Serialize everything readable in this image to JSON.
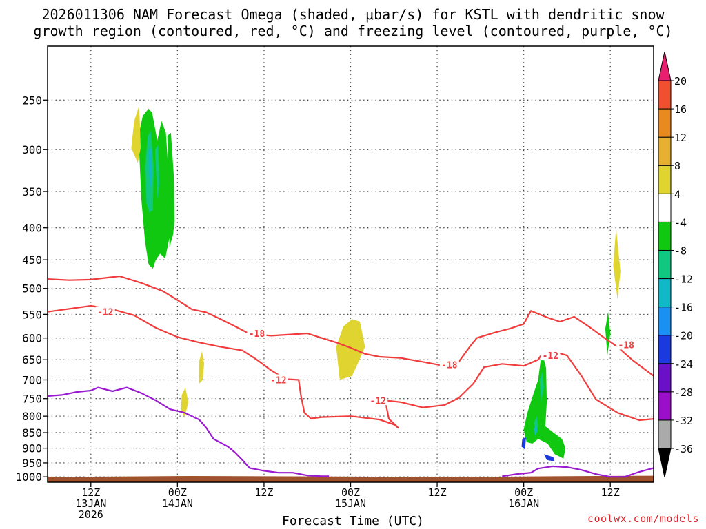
{
  "title_line1": "2026011306 NAM Forecast Omega (shaded, μbar/s) for KSTL with dendritic snow",
  "title_line2": "growth region (contoured, red, °C) and freezing level (contoured, purple, °C)",
  "credit": "coolwx.com/models",
  "chart_data": {
    "type": "heatmap",
    "xlabel": "Forecast Time (UTC)",
    "ylabel": "",
    "y_scale": "log-pressure (hPa, inverted)",
    "ylim": [
      1020,
      205
    ],
    "xlim_hours": [
      0,
      84
    ],
    "grid": true,
    "y_ticks": [
      250,
      300,
      350,
      400,
      450,
      500,
      550,
      600,
      650,
      700,
      750,
      800,
      850,
      900,
      950,
      1000
    ],
    "x_ticks": [
      {
        "hour": 6,
        "lines": [
          "12Z",
          "13JAN",
          "2026"
        ]
      },
      {
        "hour": 18,
        "lines": [
          "00Z",
          "14JAN"
        ]
      },
      {
        "hour": 30,
        "lines": [
          "12Z"
        ]
      },
      {
        "hour": 42,
        "lines": [
          "00Z",
          "15JAN"
        ]
      },
      {
        "hour": 54,
        "lines": [
          "12Z"
        ]
      },
      {
        "hour": 66,
        "lines": [
          "00Z",
          "16JAN"
        ]
      },
      {
        "hour": 78,
        "lines": [
          "12Z"
        ]
      }
    ],
    "colorbar": {
      "levels": [
        -36,
        -32,
        -28,
        -24,
        -20,
        -16,
        -12,
        -8,
        -4,
        4,
        8,
        12,
        16,
        20
      ],
      "colors": [
        "#000000",
        "#aaaaaa",
        "#9a10c8",
        "#6a10c8",
        "#1a3ae0",
        "#1a90f0",
        "#10b8c8",
        "#10c880",
        "#10c810",
        "#ffffff",
        "#e0d430",
        "#e8b030",
        "#e88a20",
        "#f05030",
        "#e81e6e"
      ]
    },
    "contours": {
      "dgz_minus12": [
        [
          0,
          545
        ],
        [
          6,
          533
        ],
        [
          9,
          540
        ],
        [
          12,
          552
        ],
        [
          15,
          578
        ],
        [
          18,
          598
        ],
        [
          21,
          610
        ],
        [
          24,
          620
        ],
        [
          27,
          628
        ],
        [
          29,
          650
        ],
        [
          31,
          676
        ],
        [
          33,
          698
        ],
        [
          34.8,
          700
        ],
        [
          35.1,
          740
        ],
        [
          35.6,
          790
        ],
        [
          36.5,
          807
        ],
        [
          38,
          803
        ],
        [
          42,
          800
        ],
        [
          46,
          810
        ],
        [
          48,
          825
        ],
        [
          48.6,
          835
        ],
        [
          47.3,
          808
        ],
        [
          46.8,
          755
        ],
        [
          49,
          760
        ],
        [
          52,
          775
        ],
        [
          55,
          768
        ],
        [
          57,
          748
        ],
        [
          59,
          710
        ],
        [
          60.5,
          668
        ],
        [
          63,
          660
        ],
        [
          66,
          665
        ],
        [
          68,
          650
        ],
        [
          68.7,
          632
        ],
        [
          70,
          630
        ],
        [
          72,
          640
        ],
        [
          74,
          690
        ],
        [
          76,
          752
        ],
        [
          79,
          790
        ],
        [
          82,
          812
        ],
        [
          84,
          808
        ]
      ],
      "dgz_minus18": [
        [
          0,
          483
        ],
        [
          3,
          485
        ],
        [
          6,
          484
        ],
        [
          10,
          478
        ],
        [
          13,
          490
        ],
        [
          16,
          505
        ],
        [
          18,
          522
        ],
        [
          20,
          540
        ],
        [
          22,
          546
        ],
        [
          24,
          560
        ],
        [
          26,
          575
        ],
        [
          28,
          591
        ],
        [
          31,
          595
        ],
        [
          34,
          592
        ],
        [
          36,
          590
        ],
        [
          38,
          600
        ],
        [
          40,
          610
        ],
        [
          42,
          622
        ],
        [
          44,
          636
        ],
        [
          46,
          643
        ],
        [
          49,
          646
        ],
        [
          52,
          655
        ],
        [
          55,
          665
        ],
        [
          57,
          655
        ],
        [
          58.5,
          620
        ],
        [
          59.5,
          600
        ],
        [
          62,
          588
        ],
        [
          64,
          580
        ],
        [
          66,
          570
        ],
        [
          67,
          543
        ],
        [
          69,
          555
        ],
        [
          71,
          565
        ],
        [
          73,
          555
        ],
        [
          75,
          575
        ],
        [
          77,
          598
        ],
        [
          79,
          620
        ],
        [
          81,
          650
        ],
        [
          84,
          690
        ]
      ],
      "freezing_level": [
        [
          0,
          743
        ],
        [
          2,
          740
        ],
        [
          4,
          732
        ],
        [
          6,
          728
        ],
        [
          7,
          720
        ],
        [
          9,
          730
        ],
        [
          11,
          720
        ],
        [
          13,
          735
        ],
        [
          15,
          755
        ],
        [
          17,
          780
        ],
        [
          19,
          790
        ],
        [
          21,
          810
        ],
        [
          22,
          835
        ],
        [
          23,
          870
        ],
        [
          25,
          895
        ],
        [
          26,
          915
        ],
        [
          27,
          940
        ],
        [
          28,
          968
        ],
        [
          30,
          978
        ],
        [
          32,
          985
        ],
        [
          34,
          985
        ],
        [
          36,
          995
        ],
        [
          38,
          998
        ],
        [
          39,
          998
        ]
      ],
      "freezing_level_2": [
        [
          63,
          998
        ],
        [
          65,
          990
        ],
        [
          67,
          985
        ],
        [
          68,
          970
        ],
        [
          70,
          962
        ],
        [
          72,
          965
        ],
        [
          74,
          975
        ],
        [
          76,
          990
        ],
        [
          78,
          1000
        ],
        [
          80,
          1000
        ],
        [
          82,
          982
        ],
        [
          84,
          968
        ]
      ]
    },
    "contour_labels": [
      {
        "text": "-12",
        "hour": 8,
        "p": 545
      },
      {
        "text": "-18",
        "hour": 29,
        "p": 590
      },
      {
        "text": "-12",
        "hour": 32,
        "p": 700
      },
      {
        "text": "-12",
        "hour": 45.8,
        "p": 755
      },
      {
        "text": "-18",
        "hour": 55.7,
        "p": 662
      },
      {
        "text": "-12",
        "hour": 69.7,
        "p": 640
      },
      {
        "text": "-18",
        "hour": 80.2,
        "p": 615
      }
    ],
    "omega_areas": [
      {
        "level": -8,
        "points": [
          [
            12.6,
            285
          ],
          [
            13.2,
            265
          ],
          [
            14,
            258
          ],
          [
            14.5,
            262
          ],
          [
            15.2,
            290
          ],
          [
            15.8,
            270
          ],
          [
            16.4,
            282
          ],
          [
            16.9,
            345
          ],
          [
            17.1,
            398
          ],
          [
            16.8,
            420
          ],
          [
            16.3,
            448
          ],
          [
            15.6,
            440
          ],
          [
            15,
            450
          ],
          [
            14.6,
            465
          ],
          [
            14,
            458
          ],
          [
            13.5,
            420
          ],
          [
            13,
            360
          ],
          [
            12.8,
            320
          ]
        ]
      },
      {
        "level": -8,
        "points": [
          [
            16.6,
            285
          ],
          [
            17.1,
            282
          ],
          [
            17.5,
            330
          ],
          [
            17.6,
            390
          ],
          [
            17.4,
            410
          ],
          [
            16.9,
            430
          ],
          [
            16.8,
            380
          ],
          [
            16.7,
            330
          ]
        ]
      },
      {
        "level": -12,
        "points": [
          [
            13.5,
            320
          ],
          [
            13.9,
            285
          ],
          [
            14.3,
            280
          ],
          [
            14.7,
            318
          ],
          [
            14.6,
            375
          ],
          [
            14.1,
            378
          ],
          [
            13.7,
            365
          ]
        ]
      },
      {
        "level": -12,
        "points": [
          [
            14.9,
            300
          ],
          [
            15.3,
            295
          ],
          [
            15.5,
            340
          ],
          [
            15.2,
            360
          ]
        ]
      },
      {
        "level": -16,
        "points": [
          [
            14,
            300
          ],
          [
            14.3,
            298
          ],
          [
            14.5,
            330
          ],
          [
            14.3,
            345
          ],
          [
            14.1,
            330
          ]
        ]
      },
      {
        "level": 4,
        "points": [
          [
            11.6,
            298
          ],
          [
            12,
            270
          ],
          [
            12.7,
            255
          ],
          [
            12.9,
            298
          ],
          [
            12.5,
            315
          ]
        ]
      },
      {
        "level": 4,
        "points": [
          [
            21,
            655
          ],
          [
            21.4,
            630
          ],
          [
            21.7,
            660
          ],
          [
            21.5,
            700
          ],
          [
            21,
            710
          ]
        ]
      },
      {
        "level": 4,
        "points": [
          [
            40,
            620
          ],
          [
            41,
            575
          ],
          [
            42.2,
            560
          ],
          [
            43.3,
            565
          ],
          [
            44,
            620
          ],
          [
            43.5,
            640
          ],
          [
            42.2,
            690
          ],
          [
            40.5,
            700
          ]
        ]
      },
      {
        "level": 4,
        "points": [
          [
            18.6,
            740
          ],
          [
            19.1,
            720
          ],
          [
            19.5,
            760
          ],
          [
            19,
            805
          ],
          [
            18.5,
            780
          ]
        ]
      },
      {
        "level": 4,
        "points": [
          [
            78.4,
            460
          ],
          [
            78.8,
            400
          ],
          [
            79.4,
            470
          ],
          [
            79,
            520
          ]
        ]
      },
      {
        "level": -8,
        "points": [
          [
            77.3,
            580
          ],
          [
            77.7,
            545
          ],
          [
            78,
            590
          ],
          [
            77.6,
            640
          ]
        ]
      },
      {
        "level": -8,
        "points": [
          [
            66,
            840
          ],
          [
            66.5,
            790
          ],
          [
            67.3,
            740
          ],
          [
            68,
            700
          ],
          [
            68.5,
            630
          ],
          [
            69.1,
            670
          ],
          [
            69.2,
            760
          ],
          [
            69,
            830
          ],
          [
            70,
            848
          ],
          [
            71.3,
            870
          ],
          [
            71.8,
            900
          ],
          [
            71.5,
            935
          ],
          [
            70.3,
            920
          ],
          [
            69.3,
            885
          ],
          [
            68,
            870
          ],
          [
            67.2,
            885
          ],
          [
            66.4,
            880
          ]
        ]
      },
      {
        "level": -12,
        "points": [
          [
            68.2,
            700
          ],
          [
            68.6,
            680
          ],
          [
            68.8,
            720
          ],
          [
            68.4,
            760
          ]
        ]
      },
      {
        "level": -12,
        "points": [
          [
            67.4,
            820
          ],
          [
            67.8,
            800
          ],
          [
            68,
            830
          ],
          [
            67.7,
            845
          ]
        ]
      },
      {
        "level": -16,
        "points": [
          [
            67.4,
            840
          ],
          [
            67.7,
            822
          ],
          [
            67.9,
            845
          ],
          [
            67.6,
            860
          ]
        ]
      },
      {
        "level": -24,
        "points": [
          [
            65.8,
            870
          ],
          [
            66.3,
            865
          ],
          [
            66.2,
            905
          ],
          [
            65.7,
            895
          ]
        ]
      },
      {
        "level": -24,
        "points": [
          [
            68.8,
            920
          ],
          [
            70.1,
            930
          ],
          [
            70.3,
            945
          ],
          [
            69.2,
            940
          ]
        ]
      }
    ]
  }
}
